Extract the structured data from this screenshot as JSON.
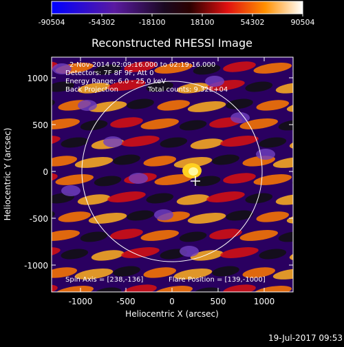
{
  "colorbar": {
    "tick_labels": [
      "-90504",
      "-54302",
      "-18100",
      "18100",
      "54302",
      "90504"
    ]
  },
  "plot": {
    "title": "Reconstructed RHESSI Image",
    "xlabel": "Heliocentric X (arcsec)",
    "ylabel": "Heliocentric Y (arcsec)",
    "x_ticks": [
      "-1000",
      "-500",
      "0",
      "500",
      "1000"
    ],
    "y_ticks": [
      "1000",
      "500",
      "0",
      "-500",
      "-1000"
    ],
    "annotations": {
      "time_range": "2-Nov-2014 02:09:16.000 to 02:19:16.000",
      "detectors": "Detectors: 7F 8F 9F, Att 0",
      "energy": "Energy Range: 6.0 - 25.0 keV",
      "method": "Back Projection",
      "counts": "Total counts: 9.32E+04",
      "spin_axis": "Spin Axis = [238,-136]",
      "flare_position": "Flare Position = [139,-1000]"
    }
  },
  "footer": {
    "date": "19-Jul-2017 09:53"
  }
}
